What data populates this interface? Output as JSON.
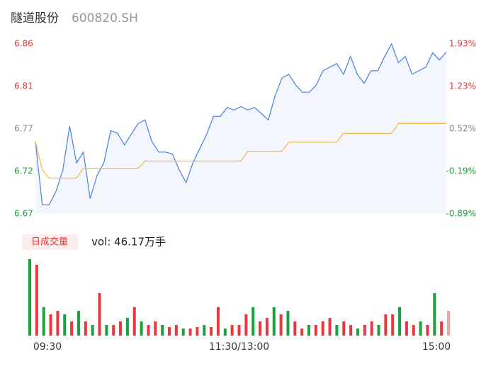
{
  "header": {
    "name": "隧道股份",
    "code": "600820.SH"
  },
  "chart_data": [
    {
      "type": "line",
      "xlim": [
        0,
        240
      ],
      "x": [
        0,
        4,
        8,
        12,
        16,
        20,
        24,
        28,
        32,
        36,
        40,
        44,
        48,
        52,
        56,
        60,
        64,
        68,
        72,
        76,
        80,
        84,
        88,
        92,
        96,
        100,
        104,
        108,
        112,
        116,
        120,
        124,
        128,
        132,
        136,
        140,
        144,
        148,
        152,
        156,
        160,
        164,
        168,
        172,
        176,
        180,
        184,
        188,
        192,
        196,
        200,
        204,
        208,
        212,
        216,
        220,
        224,
        228,
        232,
        236,
        240
      ],
      "series": [
        {
          "color": "#4a7fe0",
          "values": [
            6.751,
            6.68,
            6.68,
            6.695,
            6.719,
            6.768,
            6.727,
            6.739,
            6.687,
            6.713,
            6.727,
            6.763,
            6.76,
            6.747,
            6.759,
            6.771,
            6.775,
            6.751,
            6.739,
            6.739,
            6.737,
            6.719,
            6.705,
            6.727,
            6.743,
            6.759,
            6.779,
            6.779,
            6.789,
            6.786,
            6.79,
            6.786,
            6.789,
            6.782,
            6.775,
            6.802,
            6.822,
            6.826,
            6.814,
            6.806,
            6.806,
            6.814,
            6.83,
            6.834,
            6.838,
            6.826,
            6.846,
            6.826,
            6.816,
            6.83,
            6.83,
            6.846,
            6.86,
            6.839,
            6.846,
            6.826,
            6.83,
            6.834,
            6.85,
            6.842,
            6.851
          ]
        },
        {
          "color": "#f5b942",
          "values": [
            6.751,
            6.719,
            6.71,
            6.71,
            6.71,
            6.71,
            6.71,
            6.721,
            6.721,
            6.721,
            6.721,
            6.721,
            6.721,
            6.721,
            6.721,
            6.721,
            6.729,
            6.729,
            6.729,
            6.729,
            6.729,
            6.729,
            6.729,
            6.729,
            6.729,
            6.729,
            6.729,
            6.729,
            6.729,
            6.729,
            6.729,
            6.74,
            6.74,
            6.74,
            6.74,
            6.74,
            6.74,
            6.75,
            6.75,
            6.75,
            6.75,
            6.75,
            6.75,
            6.75,
            6.75,
            6.76,
            6.76,
            6.76,
            6.76,
            6.76,
            6.76,
            6.76,
            6.76,
            6.771,
            6.771,
            6.771,
            6.771,
            6.771,
            6.771,
            6.771,
            6.771
          ]
        }
      ],
      "ylim": [
        6.67,
        6.86
      ],
      "yticks": [
        {
          "value": 6.67,
          "label": "6.67"
        },
        {
          "value": 6.7175,
          "label": "6.72"
        },
        {
          "value": 6.765,
          "label": "6.77"
        },
        {
          "value": 6.8125,
          "label": "6.81"
        },
        {
          "value": 6.86,
          "label": "6.86"
        }
      ],
      "y2lim": [
        -0.89,
        1.93
      ],
      "y2ticks": [
        {
          "value": -0.89,
          "label": "-0.89%"
        },
        {
          "value": -0.185,
          "label": "-0.19%"
        },
        {
          "value": 0.52,
          "label": "0.52%"
        },
        {
          "value": 1.225,
          "label": "1.23%"
        },
        {
          "value": 1.93,
          "label": "1.93%"
        }
      ],
      "ytick_colors": [
        "#1aa13c",
        "#1aa13c",
        "#888888",
        "#e8383d",
        "#e8383d"
      ]
    },
    {
      "type": "bar",
      "legend_label": "日成交量",
      "summary": "vol: 46.17万手",
      "xlim": [
        0,
        240
      ],
      "x": [
        0,
        4,
        8,
        12,
        16,
        20,
        24,
        28,
        32,
        36,
        40,
        44,
        48,
        52,
        56,
        60,
        64,
        68,
        72,
        76,
        80,
        84,
        88,
        92,
        96,
        100,
        104,
        108,
        112,
        116,
        120,
        124,
        128,
        132,
        136,
        140,
        144,
        148,
        152,
        156,
        160,
        164,
        168,
        172,
        176,
        180,
        184,
        188,
        192,
        196,
        200,
        204,
        208,
        212,
        216,
        220,
        224,
        228,
        232,
        236,
        240
      ],
      "values": [
        1.08,
        1.0,
        0.4,
        0.3,
        0.35,
        0.3,
        0.2,
        0.35,
        0.2,
        0.15,
        0.6,
        0.15,
        0.15,
        0.2,
        0.25,
        0.4,
        0.2,
        0.15,
        0.2,
        0.15,
        0.12,
        0.15,
        0.1,
        0.1,
        0.12,
        0.15,
        0.12,
        0.4,
        0.1,
        0.15,
        0.15,
        0.3,
        0.4,
        0.2,
        0.25,
        0.4,
        0.3,
        0.35,
        0.2,
        0.1,
        0.15,
        0.15,
        0.2,
        0.25,
        0.15,
        0.2,
        0.15,
        0.1,
        0.15,
        0.2,
        0.15,
        0.3,
        0.3,
        0.4,
        0.2,
        0.15,
        0.2,
        0.15,
        0.6,
        0.2,
        0.35
      ],
      "colors": [
        "#1aa13c",
        "#e8383d",
        "#1aa13c",
        "#e8383d",
        "#e8383d",
        "#1aa13c",
        "#e8383d",
        "#1aa13c",
        "#e8383d",
        "#1aa13c",
        "#e8383d",
        "#1aa13c",
        "#e8383d",
        "#e8383d",
        "#1aa13c",
        "#e8383d",
        "#1aa13c",
        "#e8383d",
        "#e8383d",
        "#1aa13c",
        "#e8383d",
        "#e8383d",
        "#1aa13c",
        "#e8383d",
        "#e8383d",
        "#1aa13c",
        "#e8383d",
        "#e8383d",
        "#1aa13c",
        "#e8383d",
        "#e8383d",
        "#e8383d",
        "#1aa13c",
        "#e8383d",
        "#e8383d",
        "#1aa13c",
        "#e8383d",
        "#1aa13c",
        "#e8383d",
        "#e8383d",
        "#1aa13c",
        "#e8383d",
        "#e8383d",
        "#e8383d",
        "#1aa13c",
        "#e8383d",
        "#e8383d",
        "#1aa13c",
        "#e8383d",
        "#e8383d",
        "#1aa13c",
        "#e8383d",
        "#e8383d",
        "#1aa13c",
        "#e8383d",
        "#e8383d",
        "#1aa13c",
        "#e8383d",
        "#1aa13c",
        "#e8383d",
        "#f4a0a3"
      ],
      "ylim": [
        0,
        1.1
      ],
      "xticks": [
        {
          "value": 0,
          "label": "09:30"
        },
        {
          "value": 120,
          "label": "11:30/13:00"
        },
        {
          "value": 240,
          "label": "15:00"
        }
      ]
    }
  ]
}
